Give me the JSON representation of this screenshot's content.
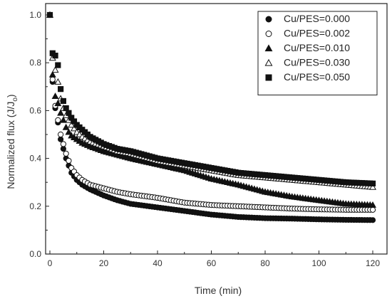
{
  "chart_data": {
    "type": "scatter",
    "xlabel": "Time (min)",
    "ylabel": "Normalized flux (J/J",
    "ylabel_sub": "o",
    "ylabel_end": ")",
    "xlim": [
      0,
      120
    ],
    "ylim": [
      0.0,
      1.0
    ],
    "x_ticks": [
      0,
      20,
      40,
      60,
      80,
      100,
      120
    ],
    "y_ticks": [
      0.0,
      0.2,
      0.4,
      0.6,
      0.8,
      1.0
    ],
    "y_tick_labels": [
      "0.0",
      "0.2",
      "0.4",
      "0.6",
      "0.8",
      "1.0"
    ],
    "grid": false,
    "legend_position": "top-right",
    "series": [
      {
        "name": "Cu/PES=0.000",
        "marker": "filled-circle",
        "color": "#111111",
        "x": [
          0,
          1,
          2,
          3,
          4,
          5,
          6,
          7,
          8,
          10,
          12,
          15,
          20,
          25,
          30,
          40,
          50,
          60,
          70,
          80,
          90,
          100,
          110,
          120
        ],
        "y": [
          1.0,
          0.72,
          0.61,
          0.55,
          0.48,
          0.44,
          0.4,
          0.37,
          0.34,
          0.31,
          0.29,
          0.27,
          0.245,
          0.225,
          0.21,
          0.195,
          0.18,
          0.165,
          0.155,
          0.15,
          0.148,
          0.145,
          0.143,
          0.142
        ]
      },
      {
        "name": "Cu/PES=0.002",
        "marker": "open-circle",
        "color": "#111111",
        "x": [
          0,
          1,
          2,
          3,
          4,
          5,
          6,
          7,
          8,
          10,
          12,
          15,
          20,
          25,
          30,
          40,
          50,
          60,
          70,
          80,
          90,
          100,
          110,
          120
        ],
        "y": [
          1.0,
          0.73,
          0.62,
          0.56,
          0.5,
          0.46,
          0.42,
          0.39,
          0.36,
          0.33,
          0.31,
          0.29,
          0.275,
          0.26,
          0.25,
          0.235,
          0.215,
          0.205,
          0.2,
          0.195,
          0.19,
          0.187,
          0.185,
          0.185
        ]
      },
      {
        "name": "Cu/PES=0.010",
        "marker": "filled-triangle",
        "color": "#111111",
        "x": [
          0,
          1,
          2,
          3,
          4,
          5,
          6,
          7,
          8,
          10,
          12,
          15,
          20,
          25,
          30,
          40,
          50,
          60,
          70,
          80,
          90,
          100,
          110,
          120
        ],
        "y": [
          1.0,
          0.75,
          0.66,
          0.63,
          0.59,
          0.56,
          0.53,
          0.51,
          0.495,
          0.48,
          0.465,
          0.45,
          0.43,
          0.415,
          0.4,
          0.375,
          0.35,
          0.315,
          0.29,
          0.26,
          0.24,
          0.225,
          0.21,
          0.205
        ]
      },
      {
        "name": "Cu/PES=0.030",
        "marker": "open-triangle",
        "color": "#111111",
        "x": [
          0,
          1,
          2,
          3,
          4,
          5,
          6,
          7,
          8,
          10,
          12,
          15,
          20,
          25,
          30,
          40,
          50,
          60,
          70,
          80,
          90,
          100,
          110,
          120
        ],
        "y": [
          1.0,
          0.82,
          0.77,
          0.72,
          0.65,
          0.61,
          0.58,
          0.56,
          0.54,
          0.51,
          0.49,
          0.47,
          0.45,
          0.43,
          0.42,
          0.39,
          0.37,
          0.35,
          0.33,
          0.32,
          0.31,
          0.3,
          0.29,
          0.28
        ]
      },
      {
        "name": "Cu/PES=0.050",
        "marker": "filled-square",
        "color": "#111111",
        "x": [
          0,
          1,
          2,
          3,
          4,
          5,
          6,
          7,
          8,
          10,
          12,
          15,
          20,
          25,
          30,
          40,
          50,
          60,
          70,
          80,
          90,
          100,
          110,
          120
        ],
        "y": [
          1.0,
          0.84,
          0.83,
          0.79,
          0.69,
          0.64,
          0.61,
          0.59,
          0.57,
          0.54,
          0.52,
          0.49,
          0.46,
          0.44,
          0.43,
          0.4,
          0.38,
          0.36,
          0.34,
          0.33,
          0.32,
          0.31,
          0.3,
          0.295
        ]
      }
    ]
  }
}
